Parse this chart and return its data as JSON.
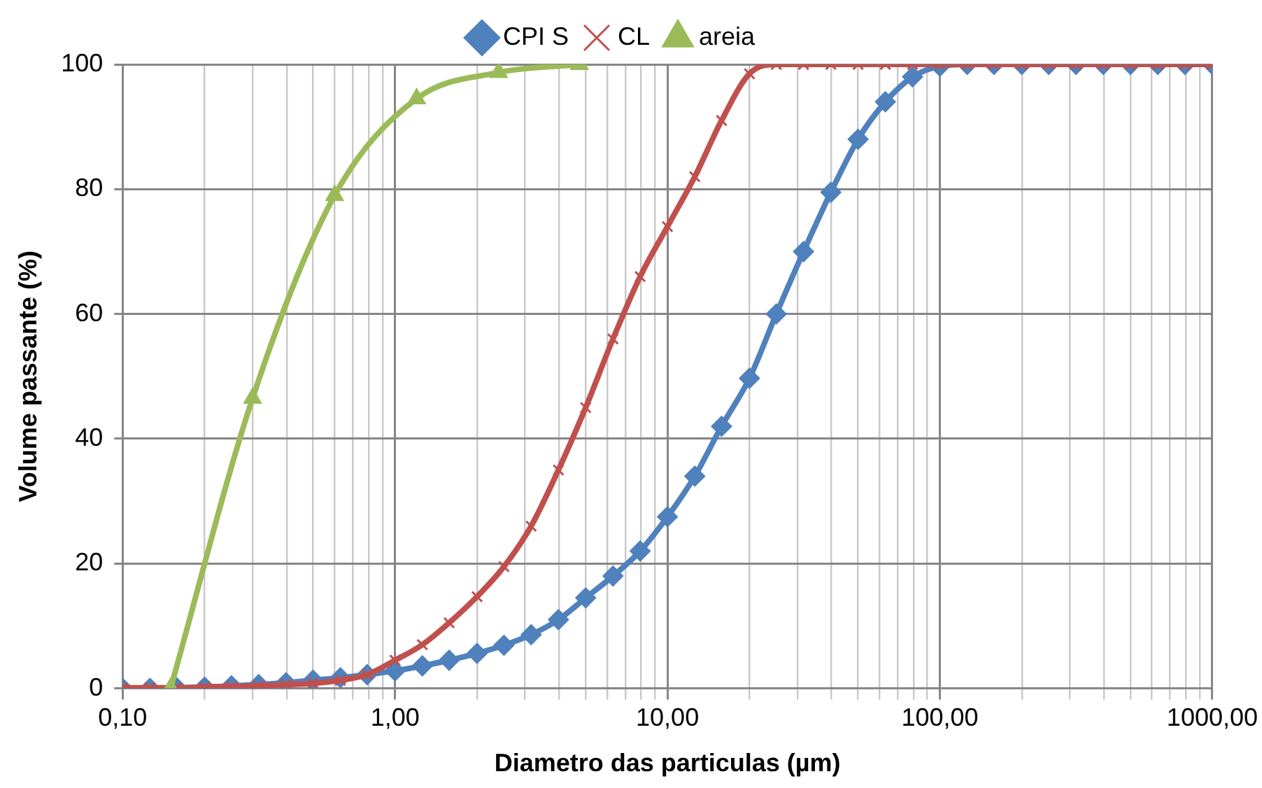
{
  "chart_data": {
    "type": "line",
    "xlabel": "Diametro das particulas (µm)",
    "ylabel": "Volume passante (%)",
    "log": "x",
    "grid": true,
    "legend": "top",
    "line_style": "solid",
    "xlim": [
      0.1,
      1000
    ],
    "xticks": [
      {
        "value": 0.1,
        "label": "0,10"
      },
      {
        "value": 0.2,
        "label": null
      },
      {
        "value": 0.3,
        "label": null
      },
      {
        "value": 0.4,
        "label": null
      },
      {
        "value": 0.5,
        "label": null
      },
      {
        "value": 0.6,
        "label": null
      },
      {
        "value": 0.7,
        "label": null
      },
      {
        "value": 0.8,
        "label": null
      },
      {
        "value": 0.9,
        "label": null
      },
      {
        "value": 1,
        "label": "1,00"
      },
      {
        "value": 2,
        "label": null
      },
      {
        "value": 3,
        "label": null
      },
      {
        "value": 4,
        "label": null
      },
      {
        "value": 5,
        "label": null
      },
      {
        "value": 6,
        "label": null
      },
      {
        "value": 7,
        "label": null
      },
      {
        "value": 8,
        "label": null
      },
      {
        "value": 9,
        "label": null
      },
      {
        "value": 10,
        "label": "10,00"
      },
      {
        "value": 20,
        "label": null
      },
      {
        "value": 30,
        "label": null
      },
      {
        "value": 40,
        "label": null
      },
      {
        "value": 50,
        "label": null
      },
      {
        "value": 60,
        "label": null
      },
      {
        "value": 70,
        "label": null
      },
      {
        "value": 80,
        "label": null
      },
      {
        "value": 90,
        "label": null
      },
      {
        "value": 100,
        "label": "100,00"
      },
      {
        "value": 200,
        "label": null
      },
      {
        "value": 300,
        "label": null
      },
      {
        "value": 400,
        "label": null
      },
      {
        "value": 500,
        "label": null
      },
      {
        "value": 600,
        "label": null
      },
      {
        "value": 700,
        "label": null
      },
      {
        "value": 800,
        "label": null
      },
      {
        "value": 900,
        "label": null
      },
      {
        "value": 1000,
        "label": "1000,00"
      }
    ],
    "ylim": [
      0,
      100
    ],
    "yticks": [
      0,
      20,
      40,
      60,
      80,
      100
    ],
    "series": [
      {
        "name": "CPI S",
        "color": "#4f81bd",
        "marker": "diamond",
        "x": [
          0.1,
          0.126,
          0.158,
          0.2,
          0.251,
          0.316,
          0.398,
          0.5,
          0.63,
          0.79,
          1,
          1.26,
          1.58,
          2,
          2.51,
          3.16,
          3.98,
          5.01,
          6.31,
          7.94,
          10,
          12.6,
          15.8,
          20,
          25.1,
          31.6,
          39.8,
          50.1,
          63.1,
          79.4,
          100,
          126,
          158,
          200,
          251,
          316,
          398,
          501,
          631,
          794,
          1000
        ],
        "values": [
          0,
          0,
          0.1,
          0.2,
          0.4,
          0.6,
          0.9,
          1.3,
          1.7,
          2.2,
          2.8,
          3.6,
          4.5,
          5.6,
          6.9,
          8.6,
          11,
          14.5,
          18,
          22,
          27.5,
          34,
          42,
          49.7,
          60,
          70,
          79.5,
          88,
          94,
          98,
          99.7,
          100,
          100,
          100,
          100,
          100,
          100,
          100,
          100,
          100,
          100
        ]
      },
      {
        "name": "CL",
        "color": "#c0504d",
        "marker": "cross",
        "x": [
          0.1,
          0.126,
          0.158,
          0.2,
          0.251,
          0.316,
          0.398,
          0.5,
          0.63,
          0.79,
          1,
          1.26,
          1.58,
          2,
          2.51,
          3.16,
          3.98,
          5.01,
          6.31,
          7.94,
          10,
          12.6,
          15.8,
          20,
          25.1,
          31.6,
          39.8,
          50.1,
          63.1,
          79.4,
          100,
          126,
          158,
          200,
          251,
          316,
          398,
          501,
          631,
          794,
          1000
        ],
        "values": [
          0.1,
          0.1,
          0.1,
          0.2,
          0.3,
          0.4,
          0.6,
          0.8,
          1.3,
          2.2,
          4.5,
          7,
          10.5,
          14.7,
          19.5,
          26,
          35,
          45,
          56,
          66,
          74,
          82,
          91,
          98.5,
          100,
          100,
          100,
          100,
          100,
          100,
          100,
          100,
          100,
          100,
          100,
          100,
          100,
          100,
          100,
          100,
          100
        ]
      },
      {
        "name": "areia",
        "color": "#9bbb59",
        "marker": "triangle",
        "x": [
          0.15,
          0.3,
          0.6,
          1.2,
          2.4,
          4.75
        ],
        "values": [
          0,
          46.5,
          79,
          94.5,
          98.7,
          100
        ]
      }
    ]
  }
}
